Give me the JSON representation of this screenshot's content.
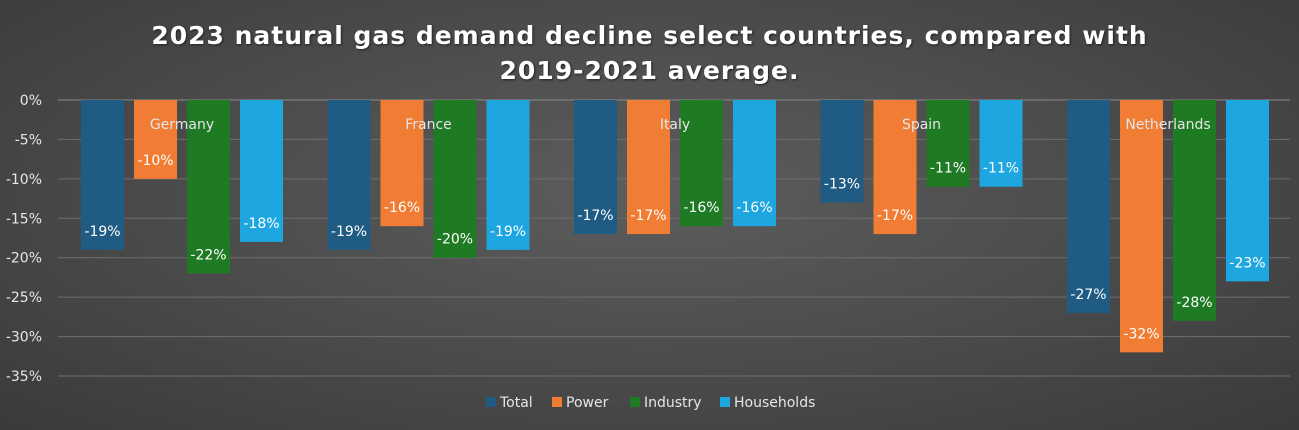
{
  "chart_data": {
    "type": "bar",
    "title": "2023 natural gas demand decline select countries, compared with\n2019-2021 average.",
    "categories": [
      "Germany",
      "France",
      "Italy",
      "Spain",
      "Netherlands"
    ],
    "series": [
      {
        "name": "Total",
        "color": "#1f5b82",
        "values": [
          -19,
          -19,
          -17,
          -13,
          -27
        ],
        "labels": [
          "-19%",
          "-19%",
          "-17%",
          "-13%",
          "-27%"
        ]
      },
      {
        "name": "Power",
        "color": "#f07d33",
        "values": [
          -10,
          -16,
          -17,
          -17,
          -32
        ],
        "labels": [
          "-10%",
          "-16%",
          "-17%",
          "-17%",
          "-32%"
        ]
      },
      {
        "name": "Industry",
        "color": "#1e7a23",
        "values": [
          -22,
          -20,
          -16,
          -11,
          -28
        ],
        "labels": [
          "-22%",
          "-20%",
          "-16%",
          "-11%",
          "-28%"
        ]
      },
      {
        "name": "Households",
        "color": "#1ea6e0",
        "values": [
          -18,
          -19,
          -16,
          -11,
          -23
        ],
        "labels": [
          "-18%",
          "-19%",
          "-16%",
          "-11%",
          "-23%"
        ]
      }
    ],
    "ylim": [
      -35,
      0
    ],
    "yticks": [
      0,
      -5,
      -10,
      -15,
      -20,
      -25,
      -30,
      -35
    ],
    "ytick_labels": [
      "0%",
      "-5%",
      "-10%",
      "-15%",
      "-20%",
      "-25%",
      "-30%",
      "-35%"
    ],
    "xlabel": "",
    "ylabel": "",
    "grid": true,
    "legend_position": "bottom"
  }
}
